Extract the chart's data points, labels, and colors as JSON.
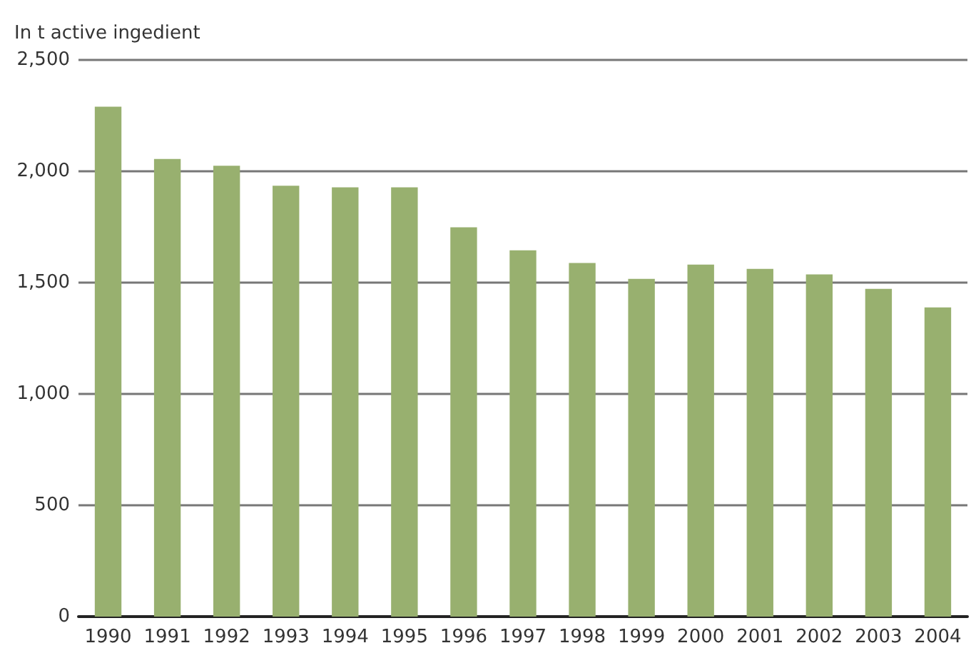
{
  "chart_data": {
    "type": "bar",
    "ylabel": "In t active ingedient",
    "categories": [
      "1990",
      "1991",
      "1992",
      "1993",
      "1994",
      "1995",
      "1996",
      "1997",
      "1998",
      "1999",
      "2000",
      "2001",
      "2002",
      "2003",
      "2004"
    ],
    "values": [
      2290,
      2055,
      2025,
      1935,
      1928,
      1928,
      1748,
      1645,
      1588,
      1517,
      1581,
      1562,
      1537,
      1472,
      1389
    ],
    "color": "#98b06f",
    "ylim": [
      0,
      2500
    ],
    "yticks": [
      0,
      500,
      {
        "value": 1000,
        "label": "1,000"
      },
      {
        "value": 1500,
        "label": "1,500"
      },
      {
        "value": 2000,
        "label": "2,000"
      },
      {
        "value": 2500,
        "label": "2,500"
      }
    ],
    "grid": "y"
  }
}
